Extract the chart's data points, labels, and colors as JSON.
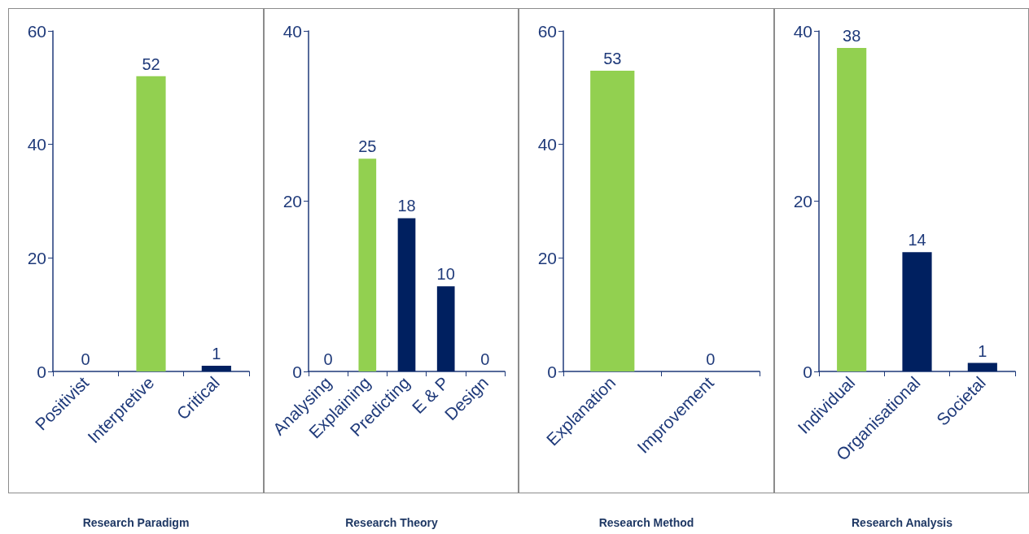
{
  "chart_data": [
    {
      "type": "bar",
      "title": "Research Paradigm",
      "categories": [
        "Positivist",
        "Interpretive",
        "Critical"
      ],
      "values": [
        0,
        52,
        1
      ],
      "colors": [
        "#002060",
        "#92d050",
        "#002060"
      ],
      "ylim": [
        0,
        60
      ],
      "yticks": [
        0,
        20,
        40,
        60
      ],
      "data_labels": true,
      "grid": false
    },
    {
      "type": "bar",
      "title": "Research Theory",
      "categories": [
        "Analysing",
        "Explaining",
        "Predicting",
        "E & P",
        "Design"
      ],
      "values": [
        0,
        25,
        18,
        10,
        0
      ],
      "colors": [
        "#002060",
        "#92d050",
        "#002060",
        "#002060",
        "#002060"
      ],
      "ylim": [
        0,
        40
      ],
      "yticks": [
        0,
        20,
        40
      ],
      "data_labels": true,
      "grid": false
    },
    {
      "type": "bar",
      "title": "Research Method",
      "categories": [
        "Explanation",
        "Improvement"
      ],
      "values": [
        53,
        0
      ],
      "colors": [
        "#92d050",
        "#002060"
      ],
      "ylim": [
        0,
        60
      ],
      "yticks": [
        0,
        20,
        40,
        60
      ],
      "data_labels": true,
      "grid": false
    },
    {
      "type": "bar",
      "title": "Research Analysis",
      "categories": [
        "Individual",
        "Organisational",
        "Societal"
      ],
      "values": [
        38,
        14,
        1
      ],
      "colors": [
        "#92d050",
        "#002060",
        "#002060"
      ],
      "ylim": [
        0,
        40
      ],
      "yticks": [
        0,
        20,
        40
      ],
      "data_labels": true,
      "grid": false
    }
  ]
}
